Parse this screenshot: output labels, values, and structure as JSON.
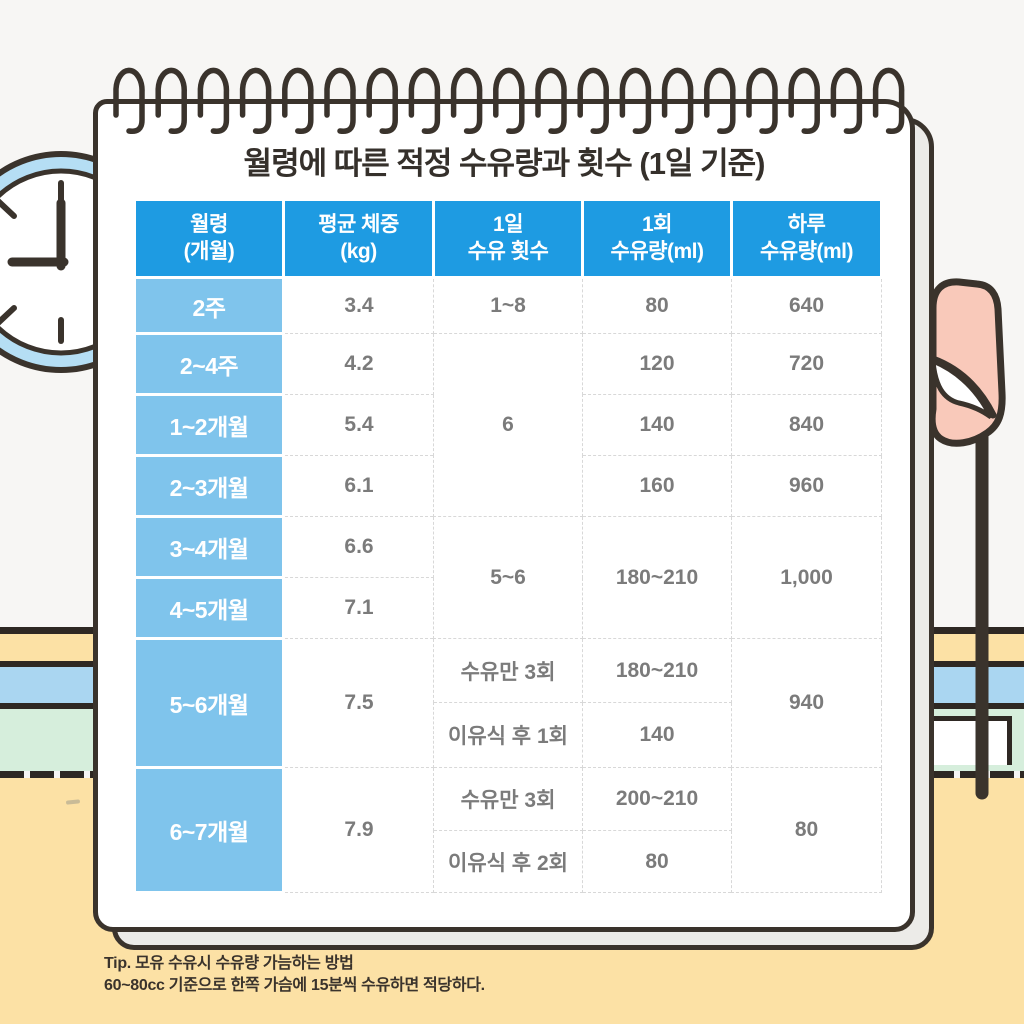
{
  "title": "월령에 따른 적정 수유량과 횟수 (1일 기준)",
  "table": {
    "headers": [
      {
        "line1": "월령",
        "line2": "(개월)"
      },
      {
        "line1": "평균 체중",
        "line2": "(kg)"
      },
      {
        "line1": "1일",
        "line2": "수유 횟수"
      },
      {
        "line1": "1회",
        "line2": "수유량(ml)"
      },
      {
        "line1": "하루",
        "line2": "수유량(ml)"
      }
    ],
    "rows": [
      [
        "2주",
        "3.4",
        "1~8",
        "80",
        "640"
      ],
      [
        "2~4주",
        "4.2",
        "6",
        "120",
        "720"
      ],
      [
        "1~2개월",
        "5.4",
        "140",
        "840"
      ],
      [
        "2~3개월",
        "6.1",
        "160",
        "960"
      ],
      [
        "3~4개월",
        "6.6",
        "5~6",
        "180~210",
        "1,000"
      ],
      [
        "4~5개월",
        "7.1"
      ],
      [
        "5~6개월",
        "7.5",
        "수유만 3회",
        "180~210",
        "940"
      ],
      [
        "이유식 후 1회",
        "140"
      ],
      [
        "6~7개월",
        "7.9",
        "수유만 3회",
        "200~210",
        "80"
      ],
      [
        "이유식 후 2회",
        "80"
      ]
    ]
  },
  "tip": {
    "line1": "Tip. 모유 수유시 수유량 가늠하는 방법",
    "line2": "60~80cc 기준으로 한쪽 가슴에 15분씩 수유하면 적당하다."
  },
  "icons": {
    "clock": "clock-icon",
    "flag": "flag-icon",
    "spiral": "spiral-binding-icon"
  },
  "colors": {
    "header_blue": "#1e9be2",
    "label_blue": "#7fc4ec",
    "body_text_gray": "#7b7b7b",
    "outline_dark": "#3a332c",
    "wall_white": "#f7f6f4",
    "floor_yellow": "#fce1a5",
    "band_blue": "#aad6f1",
    "band_green": "#d6eedc",
    "flag_pink": "#f9c9ba",
    "clock_rim_blue": "#b5def4",
    "page_white": "#ffffff",
    "page_stack_gray": "#ecebe8"
  },
  "chart_data": {
    "type": "table",
    "title": "월령에 따른 적정 수유량과 횟수 (1일 기준)",
    "columns": [
      "월령(개월)",
      "평균 체중(kg)",
      "1일 수유 횟수",
      "1회 수유량(ml)",
      "하루 수유량(ml)"
    ],
    "rows": [
      [
        "2주",
        "3.4",
        "1~8",
        "80",
        "640"
      ],
      [
        "2~4주",
        "4.2",
        "6",
        "120",
        "720"
      ],
      [
        "1~2개월",
        "5.4",
        "6",
        "140",
        "840"
      ],
      [
        "2~3개월",
        "6.1",
        "6",
        "160",
        "960"
      ],
      [
        "3~4개월",
        "6.6",
        "5~6",
        "180~210",
        "1,000"
      ],
      [
        "4~5개월",
        "7.1",
        "5~6",
        "180~210",
        "1,000"
      ],
      [
        "5~6개월",
        "7.5",
        "수유만 3회",
        "180~210",
        "940"
      ],
      [
        "5~6개월",
        "7.5",
        "이유식 후 1회",
        "140",
        "940"
      ],
      [
        "6~7개월",
        "7.9",
        "수유만 3회",
        "200~210",
        "80"
      ],
      [
        "6~7개월",
        "7.9",
        "이유식 후 2회",
        "80",
        "80"
      ]
    ],
    "note": "Tip. 모유 수유시 수유량 가늠하는 방법 — 60~80cc 기준으로 한쪽 가슴에 15분씩 수유하면 적당하다.",
    "merged_cells": [
      {
        "column": "1일 수유 횟수",
        "value": "6",
        "spans": [
          "2~4주",
          "1~2개월",
          "2~3개월"
        ]
      },
      {
        "column": "1일 수유 횟수",
        "value": "5~6",
        "spans": [
          "3~4개월",
          "4~5개월"
        ]
      },
      {
        "column": "1회 수유량(ml)",
        "value": "180~210",
        "spans": [
          "3~4개월",
          "4~5개월"
        ]
      },
      {
        "column": "하루 수유량(ml)",
        "value": "1,000",
        "spans": [
          "3~4개월",
          "4~5개월"
        ]
      },
      {
        "column": "하루 수유량(ml)",
        "value": "940",
        "spans": [
          "5~6개월"
        ]
      },
      {
        "column": "하루 수유량(ml)",
        "value": "80",
        "spans": [
          "6~7개월"
        ]
      }
    ]
  }
}
